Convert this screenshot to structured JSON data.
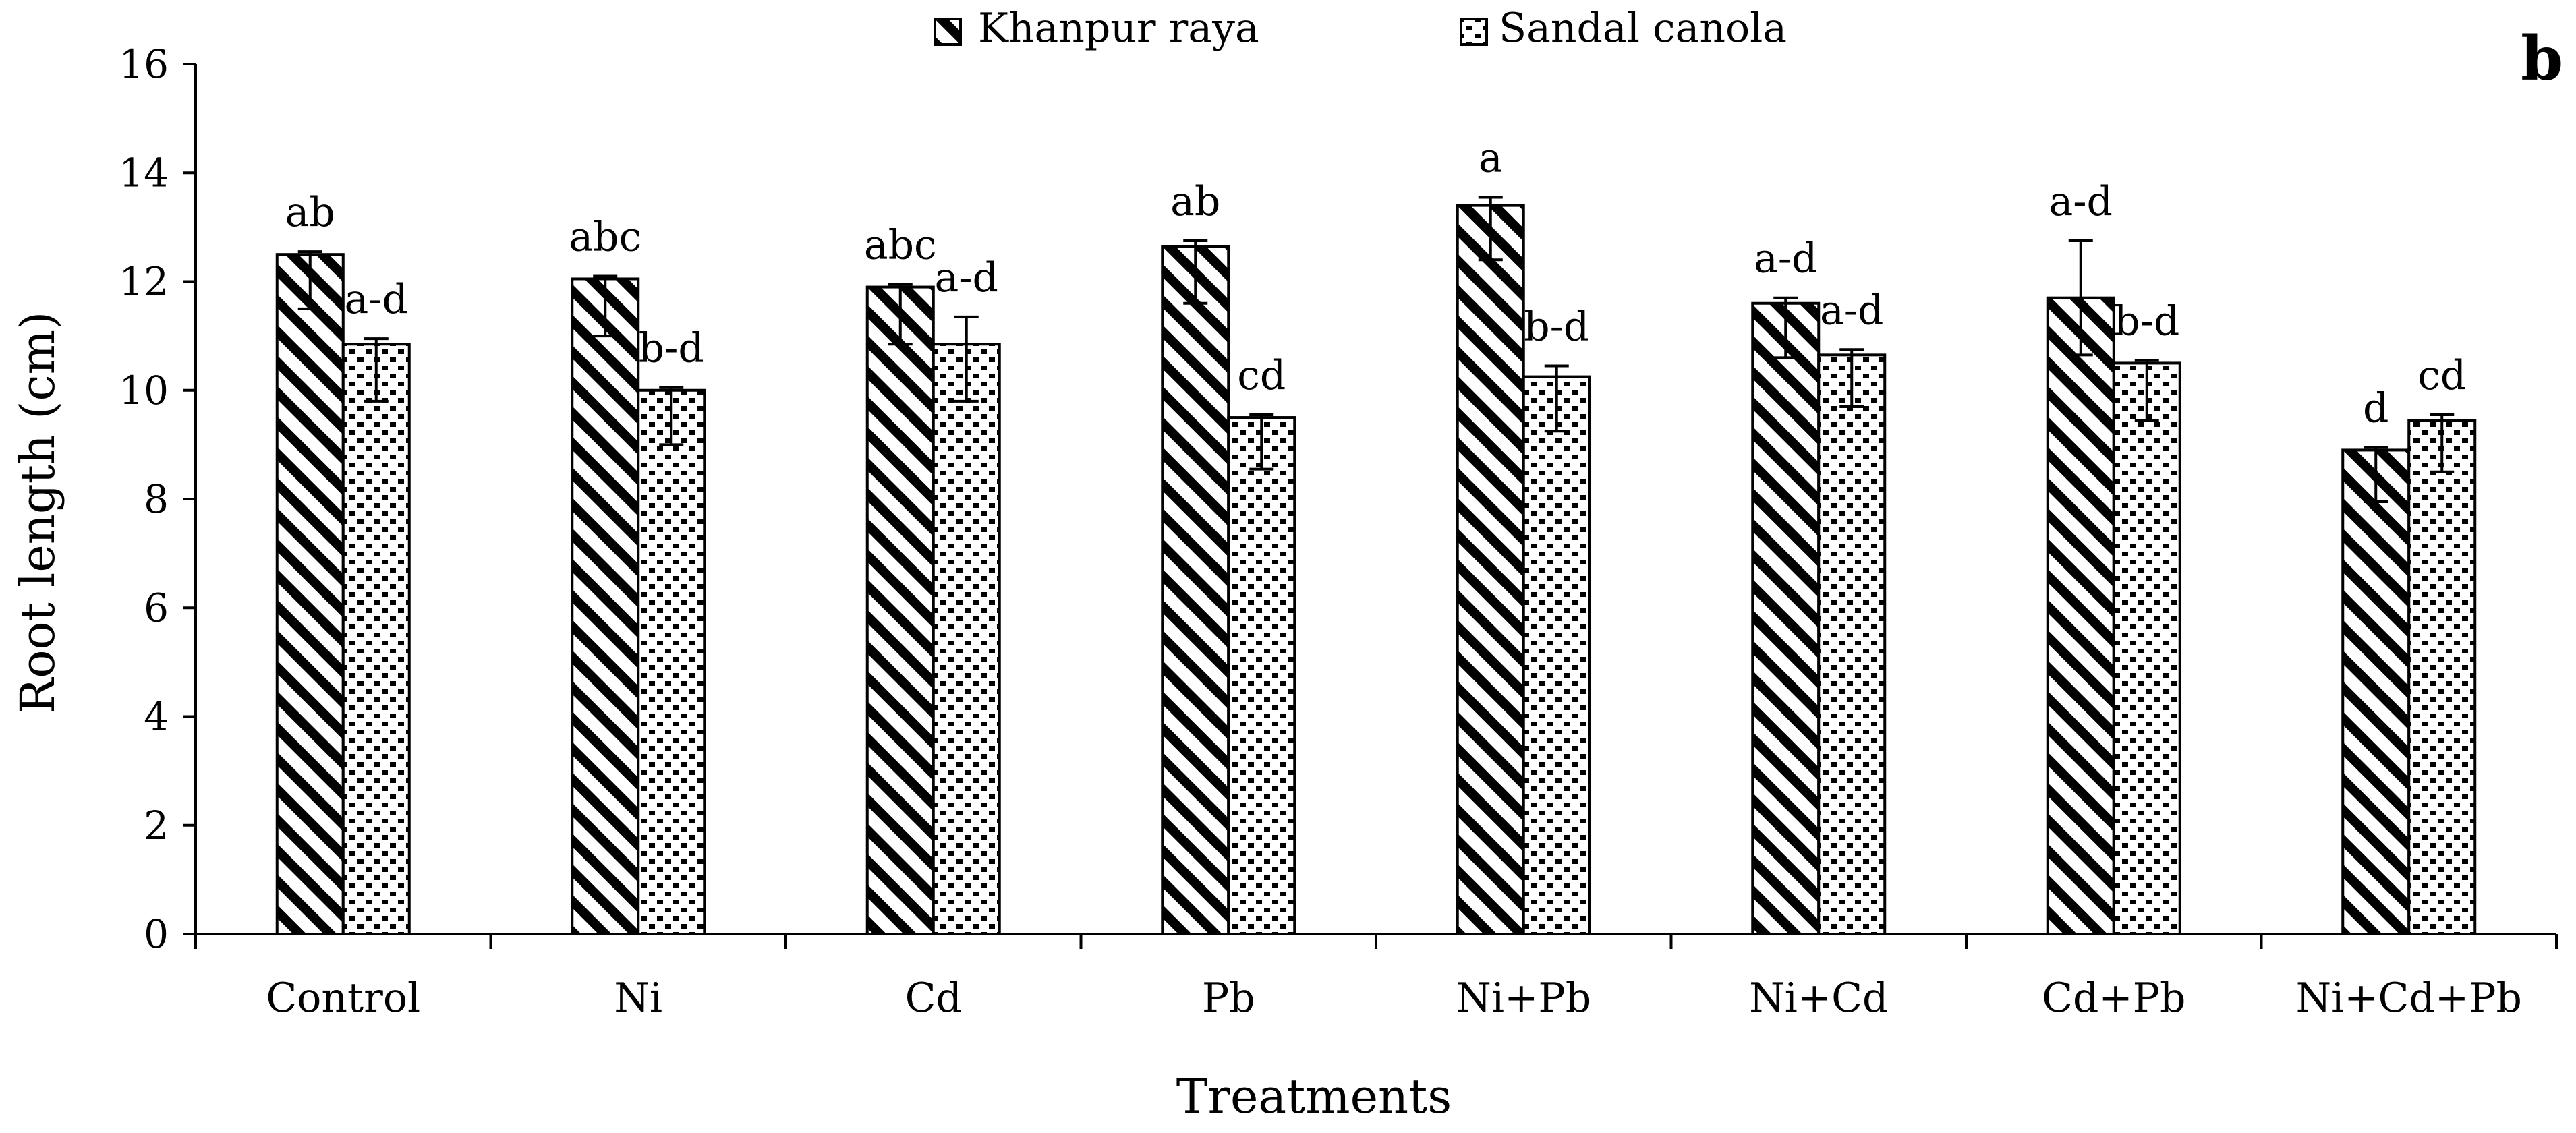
{
  "chart_data": {
    "type": "bar",
    "panel_label": "b",
    "title": "",
    "xlabel": "Treatments",
    "ylabel": "Root length (cm)",
    "ylim": [
      0,
      16
    ],
    "yticks": [
      0,
      2,
      4,
      6,
      8,
      10,
      12,
      14,
      16
    ],
    "grid": false,
    "legend_position": "top-center",
    "categories": [
      "Control",
      "Ni",
      "Cd",
      "Pb",
      "Ni+Pb",
      "Ni+Cd",
      "Cd+Pb",
      "Ni+Cd+Pb"
    ],
    "series": [
      {
        "name": "Khanpur raya",
        "pattern": "diagonal-stripes",
        "values": [
          12.5,
          12.05,
          11.9,
          12.65,
          13.4,
          11.6,
          11.7,
          8.9
        ],
        "error_low": [
          11.5,
          11.0,
          10.85,
          11.6,
          12.4,
          10.6,
          10.65,
          7.95
        ],
        "error_high": [
          12.55,
          12.1,
          11.95,
          12.75,
          13.55,
          11.7,
          12.75,
          8.95
        ],
        "letters": [
          "ab",
          "abc",
          "abc",
          "ab",
          "a",
          "a-d",
          "a-d",
          "d"
        ]
      },
      {
        "name": "Sandal canola",
        "pattern": "dots",
        "values": [
          10.85,
          10.0,
          10.85,
          9.5,
          10.25,
          10.65,
          10.5,
          9.45
        ],
        "error_low": [
          9.8,
          9.0,
          9.8,
          8.55,
          9.25,
          9.7,
          9.45,
          8.5
        ],
        "error_high": [
          10.95,
          10.05,
          11.35,
          9.55,
          10.45,
          10.75,
          10.55,
          9.55
        ],
        "letters": [
          "a-d",
          "b-d",
          "a-d",
          "cd",
          "b-d",
          "a-d",
          "b-d",
          "cd"
        ]
      }
    ]
  }
}
